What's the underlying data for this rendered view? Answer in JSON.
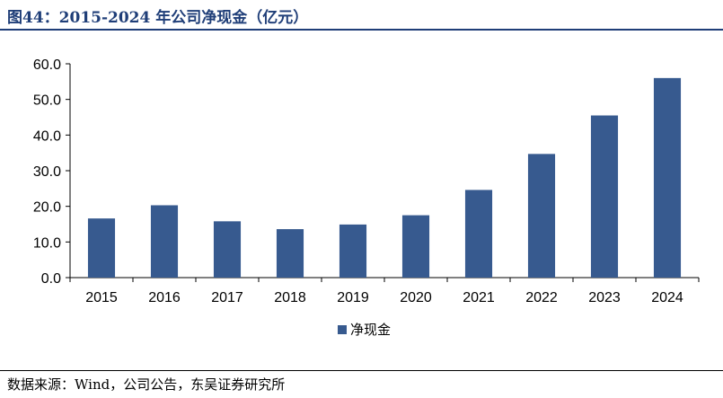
{
  "title": "图44：2015-2024 年公司净现金（亿元）",
  "source": "数据来源：Wind，公司公告，东吴证券研究所",
  "chart_data": {
    "type": "bar",
    "categories": [
      "2015",
      "2016",
      "2017",
      "2018",
      "2019",
      "2020",
      "2021",
      "2022",
      "2023",
      "2024"
    ],
    "series": [
      {
        "name": "净现金",
        "values": [
          16.6,
          20.3,
          15.8,
          13.6,
          14.9,
          17.5,
          24.6,
          34.7,
          45.5,
          56.0
        ],
        "color": "#375A8F"
      }
    ],
    "ylim": [
      0,
      60
    ],
    "yticks": [
      "0.0",
      "10.0",
      "20.0",
      "30.0",
      "40.0",
      "50.0",
      "60.0"
    ],
    "grid": false,
    "legend_position": "bottom-center"
  }
}
